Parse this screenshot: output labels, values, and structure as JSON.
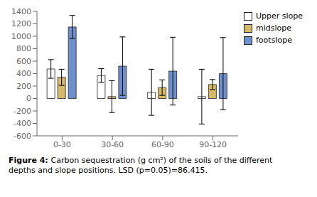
{
  "chart_data": {
    "type": "bar",
    "categories": [
      "0-30",
      "30-60",
      "60-90",
      "90-120"
    ],
    "series": [
      {
        "name": "Upper slope",
        "color": "#ffffff",
        "values": [
          475,
          370,
          100,
          30
        ],
        "errors": [
          150,
          110,
          370,
          440
        ]
      },
      {
        "name": "midslope",
        "color": "#d4b96a",
        "values": [
          340,
          30,
          175,
          225
        ],
        "errors": [
          130,
          255,
          125,
          80
        ]
      },
      {
        "name": "footslope",
        "color": "#7090cc",
        "values": [
          1150,
          520,
          440,
          400
        ],
        "errors": [
          185,
          470,
          545,
          580
        ]
      }
    ],
    "ylim": [
      -600,
      1400
    ],
    "yticks": [
      -600,
      -400,
      -200,
      0,
      200,
      400,
      600,
      800,
      1000,
      1200,
      1400
    ],
    "grid": false,
    "legend": "right",
    "annotations": [
      "Figure 4:",
      "Carbon sequestration (g cm²) of the soils of the different\ndepths and slope positions. LSD (p=0.05)=86.415."
    ]
  }
}
